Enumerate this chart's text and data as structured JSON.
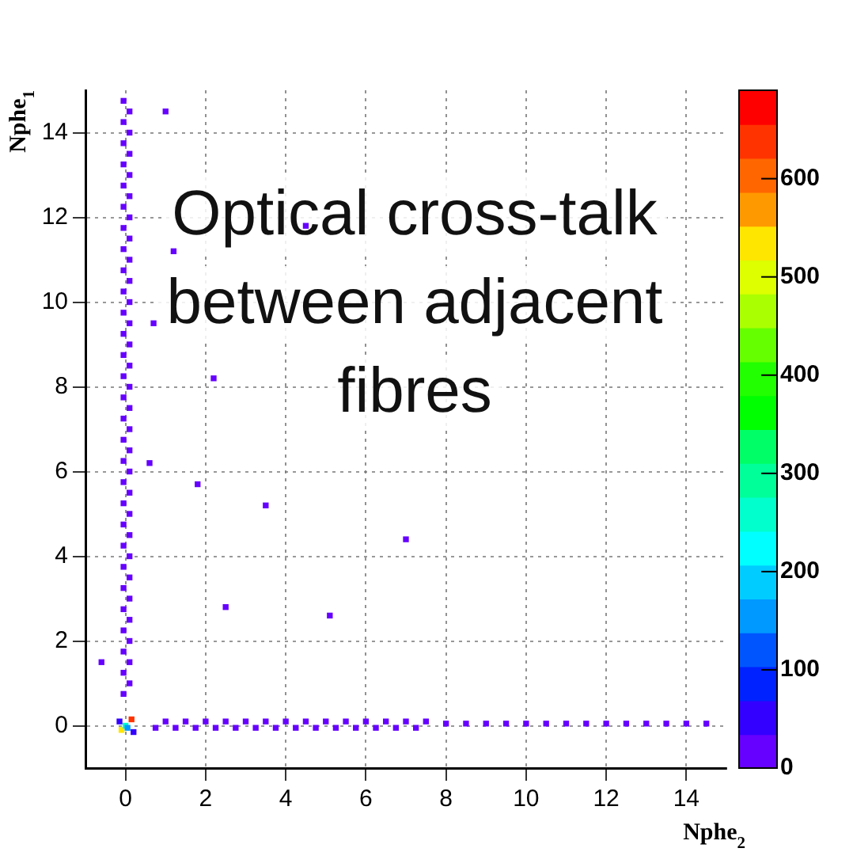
{
  "chart_data": {
    "type": "scatter",
    "title": "Optical cross-talk between adjacent fibres",
    "xlabel": "Nphe$_{2}$",
    "ylabel": "Nphe$_{1}$",
    "marker": "square",
    "grid": true,
    "xlim": [
      -1,
      15
    ],
    "ylim": [
      -1,
      15
    ],
    "xticks": [
      0,
      2,
      4,
      6,
      8,
      10,
      12,
      14
    ],
    "yticks": [
      0,
      2,
      4,
      6,
      8,
      10,
      12,
      14
    ],
    "clim": [
      0,
      690
    ],
    "cticks": [
      0,
      100,
      200,
      300,
      400,
      500,
      600
    ],
    "x": [
      -0.05,
      -0.05,
      -0.05,
      -0.05,
      -0.05,
      -0.05,
      -0.05,
      -0.05,
      -0.05,
      -0.05,
      -0.05,
      -0.05,
      -0.05,
      -0.05,
      -0.05,
      -0.05,
      -0.05,
      -0.05,
      -0.05,
      -0.05,
      -0.05,
      -0.05,
      -0.05,
      -0.05,
      -0.05,
      -0.05,
      -0.05,
      -0.05,
      -0.05,
      0.1,
      0.1,
      0.1,
      0.1,
      0.1,
      0.1,
      0.1,
      0.1,
      0.1,
      0.1,
      0.1,
      0.1,
      0.1,
      0.1,
      0.1,
      0.1,
      0.1,
      0.1,
      0.1,
      0.1,
      0.1,
      0.1,
      0.1,
      0.1,
      0.1,
      0.1,
      0.1,
      0.1,
      0.75,
      1.25,
      1.75,
      2.25,
      2.75,
      3.25,
      3.75,
      4.25,
      4.75,
      5.25,
      5.75,
      6.25,
      6.75,
      7.25,
      1,
      1.5,
      2,
      2.5,
      3,
      3.5,
      4,
      4.5,
      5,
      5.5,
      6,
      6.5,
      7,
      7.5,
      8,
      8.5,
      9,
      9.5,
      10,
      10.5,
      11,
      11.5,
      12,
      12.5,
      13,
      13.5,
      14,
      14.5,
      1,
      1.2,
      0.7,
      2.2,
      4.5,
      1.8,
      3.5,
      2.5,
      0.6,
      5.1,
      7,
      -0.6,
      -0.1,
      0.15,
      0,
      0.05,
      -0.15,
      0.2
    ],
    "values": [
      0.75,
      1.25,
      1.75,
      2.25,
      2.75,
      3.25,
      3.75,
      4.25,
      4.75,
      5.25,
      5.75,
      6.25,
      6.75,
      7.25,
      7.75,
      8.25,
      8.75,
      9.25,
      9.75,
      10.25,
      10.75,
      11.25,
      11.75,
      12.25,
      12.75,
      13.25,
      13.75,
      14.25,
      14.75,
      1,
      1.5,
      2,
      2.5,
      3,
      3.5,
      4,
      4.5,
      5,
      5.5,
      6,
      6.5,
      7,
      7.5,
      8,
      8.5,
      9,
      9.5,
      10,
      10.5,
      11,
      11.5,
      12,
      12.5,
      13,
      13.5,
      14,
      14.5,
      -0.05,
      -0.05,
      -0.05,
      -0.05,
      -0.05,
      -0.05,
      -0.05,
      -0.05,
      -0.05,
      -0.05,
      -0.05,
      -0.05,
      -0.05,
      -0.05,
      0.1,
      0.1,
      0.1,
      0.1,
      0.1,
      0.1,
      0.1,
      0.1,
      0.1,
      0.1,
      0.1,
      0.1,
      0.1,
      0.1,
      0.05,
      0.05,
      0.05,
      0.05,
      0.05,
      0.05,
      0.05,
      0.05,
      0.05,
      0.05,
      0.05,
      0.05,
      0.05,
      0.05,
      14.5,
      11.2,
      9.5,
      8.2,
      11.8,
      5.7,
      5.2,
      2.8,
      6.2,
      2.6,
      4.4,
      1.5,
      -0.1,
      0.15,
      0,
      -0.05,
      0.1,
      -0.15
    ],
    "cvalues": [
      20,
      20,
      20,
      20,
      20,
      20,
      20,
      20,
      20,
      20,
      20,
      20,
      20,
      20,
      20,
      20,
      20,
      20,
      20,
      20,
      20,
      20,
      20,
      20,
      20,
      20,
      20,
      20,
      20,
      30,
      10,
      30,
      10,
      30,
      10,
      30,
      10,
      30,
      10,
      30,
      10,
      30,
      10,
      30,
      10,
      30,
      10,
      30,
      10,
      30,
      10,
      30,
      10,
      30,
      10,
      30,
      10,
      20,
      20,
      20,
      20,
      20,
      20,
      20,
      20,
      20,
      20,
      20,
      20,
      20,
      20,
      30,
      10,
      30,
      10,
      30,
      10,
      30,
      10,
      30,
      10,
      30,
      10,
      30,
      10,
      5,
      5,
      5,
      5,
      5,
      5,
      5,
      5,
      5,
      5,
      5,
      5,
      5,
      5,
      5,
      5,
      5,
      5,
      5,
      5,
      5,
      5,
      5,
      5,
      5,
      5,
      520,
      650,
      250,
      150,
      60,
      60
    ]
  }
}
